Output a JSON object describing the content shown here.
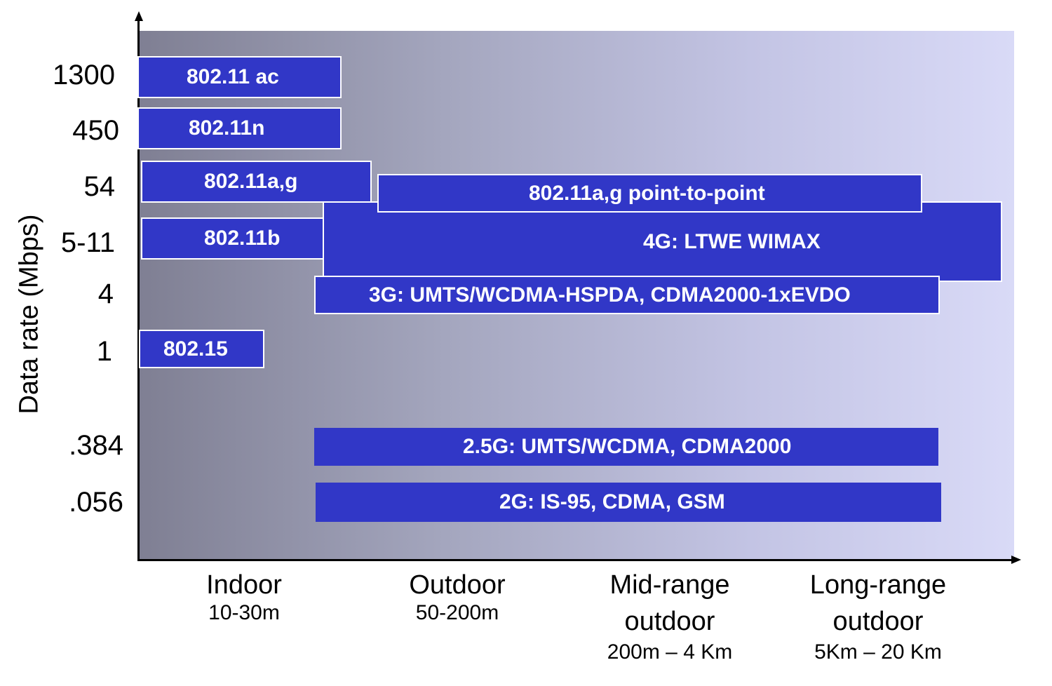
{
  "y_axis": {
    "title": "Data rate (Mbps)",
    "ticks": [
      "1300",
      "450",
      "54",
      "5-11",
      "4",
      "1",
      ".384",
      ".056"
    ]
  },
  "x_axis": {
    "categories": [
      {
        "name": "Indoor",
        "range": "10-30m"
      },
      {
        "name": "Outdoor",
        "range": "50-200m"
      },
      {
        "name": "Mid-range\noutdoor",
        "range": "200m – 4 Km"
      },
      {
        "name": "Long-range\noutdoor",
        "range": "5Km – 20 Km"
      }
    ]
  },
  "bands": {
    "wifi_ac": "802.11 ac",
    "wifi_n": "802.11n",
    "wifi_ag": "802.11a,g",
    "wifi_ag_ptp": "802.11a,g point-to-point",
    "wifi_b": "802.11b",
    "g4": "4G: LTWE WIMAX",
    "g3": "3G: UMTS/WCDMA-HSPDA, CDMA2000-1xEVDO",
    "wpan": "802.15",
    "g25": "2.5G: UMTS/WCDMA, CDMA2000",
    "g2": "2G: IS-95, CDMA, GSM"
  },
  "colors": {
    "band_fill": "#3137c7",
    "band_text": "#ffffff",
    "background_left": "#7f7f93",
    "background_right": "#d9daf7"
  }
}
